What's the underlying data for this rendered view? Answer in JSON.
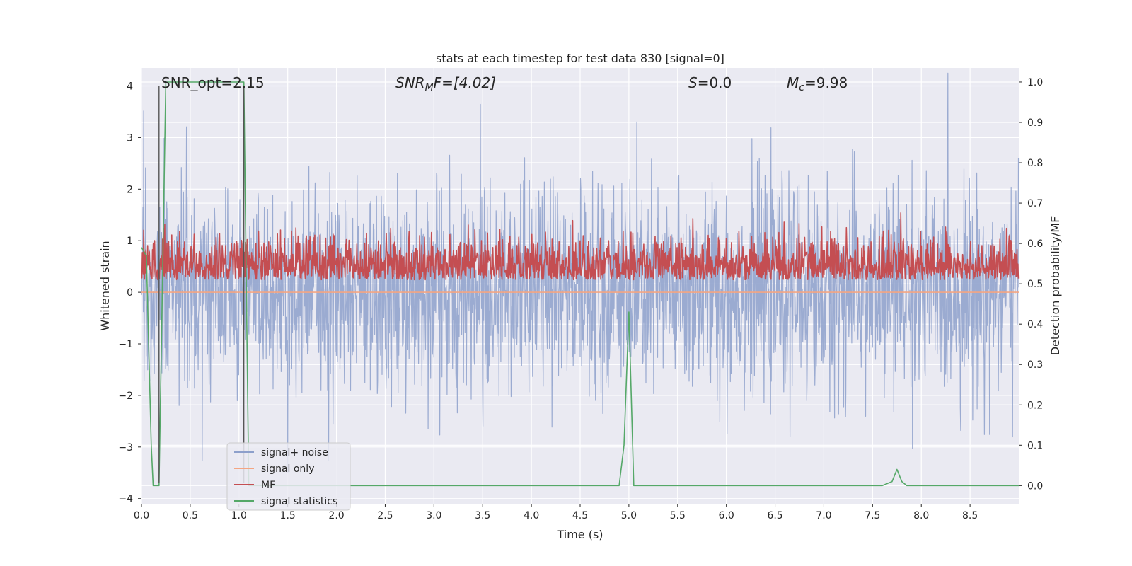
{
  "chart_data": {
    "type": "line",
    "title": "stats at each timestep for test data 830 [signal=0]",
    "xlabel": "Time (s)",
    "ylabel": "Whitened strain",
    "y2label": "Detection probability/MF",
    "xlim": [
      0,
      9.0
    ],
    "ylim": [
      -4.1,
      4.35
    ],
    "y2lim": [
      -0.045,
      1.035
    ],
    "x_ticks": [
      "0.0",
      "0.5",
      "1.0",
      "1.5",
      "2.0",
      "2.5",
      "3.0",
      "3.5",
      "4.0",
      "4.5",
      "5.0",
      "5.5",
      "6.0",
      "6.5",
      "7.0",
      "7.5",
      "8.0",
      "8.5"
    ],
    "y_ticks": [
      "4",
      "3",
      "2",
      "1",
      "0",
      "−1",
      "−2",
      "−3",
      "−4"
    ],
    "y2_ticks": [
      "1.0",
      "0.9",
      "0.8",
      "0.7",
      "0.6",
      "0.5",
      "0.4",
      "0.3",
      "0.2",
      "0.1",
      "0.0"
    ],
    "grid": true,
    "legend_position": "lower-left",
    "annotations": {
      "snr_opt": "SNR_opt=2.15",
      "snr_mf_main": "SNR",
      "snr_mf_sub": "M",
      "snr_mf_rest": "F=[4.02]",
      "s_label": "S",
      "s_value": "=0.0",
      "mc_main": "M",
      "mc_sub": "c",
      "mc_value": "=9.98"
    },
    "vertical_markers": [
      0.18,
      1.05
    ],
    "series": [
      {
        "name": "signal+ noise",
        "color": "#8da0cb",
        "axis": "left",
        "kind": "noise",
        "amplitude_std": 1.0,
        "duration": 9.0
      },
      {
        "name": "signal only",
        "color": "#f4a582",
        "axis": "left",
        "x": [
          0,
          9.0
        ],
        "y": [
          0,
          0
        ]
      },
      {
        "name": "MF",
        "color": "#c44e52",
        "axis": "right",
        "kind": "mf",
        "base": 0.53,
        "duration": 9.0
      },
      {
        "name": "signal statistics",
        "color": "#55a868",
        "axis": "right",
        "x": [
          0.0,
          0.05,
          0.1,
          0.12,
          0.18,
          0.25,
          0.5,
          1.0,
          1.05,
          1.1,
          1.2,
          1.5,
          2.0,
          3.0,
          4.0,
          4.9,
          4.95,
          5.0,
          5.05,
          5.1,
          6.0,
          7.0,
          7.6,
          7.7,
          7.75,
          7.8,
          7.85,
          8.0,
          9.0
        ],
        "y": [
          0.59,
          0.57,
          0.1,
          -0.0,
          0.0,
          1.0,
          1.0,
          1.0,
          1.0,
          0.0,
          0.0,
          0.0,
          0.0,
          0.0,
          0.0,
          0.0,
          0.1,
          0.43,
          0.0,
          0.0,
          0.0,
          0.0,
          0.0,
          0.01,
          0.04,
          0.01,
          0.0,
          0.0,
          0.0
        ]
      }
    ]
  }
}
